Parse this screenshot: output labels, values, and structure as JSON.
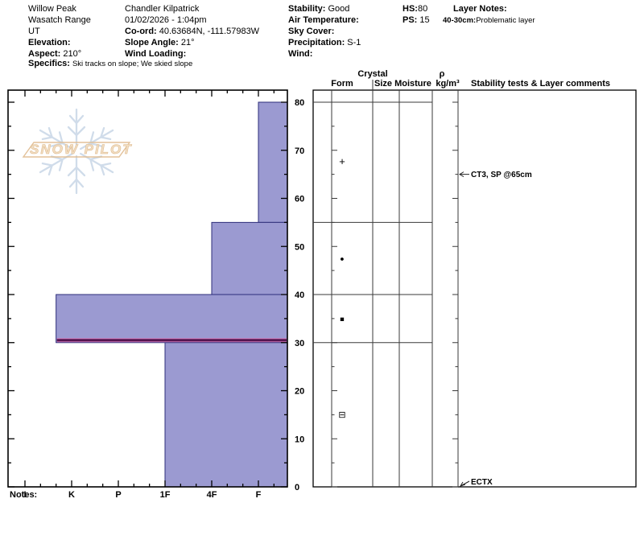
{
  "header": {
    "site": {
      "title": "Willow Peak",
      "range": "Wasatch Range",
      "state": "UT",
      "elevation_label": "Elevation:",
      "elevation_value": "",
      "aspect_label": "Aspect:",
      "aspect_value": "210°"
    },
    "specifics": {
      "label": "Specifics:",
      "value": "Ski tracks on slope; We skied slope"
    },
    "observer": {
      "name": "Chandler Kilpatrick",
      "datetime": "01/02/2026 - 1:04pm",
      "coord_label": "Co-ord:",
      "coord_value": "40.63684N, -111.57983W",
      "slope_label": "Slope Angle:",
      "slope_value": "21°",
      "wind_loading_label": "Wind Loading:",
      "wind_loading_value": ""
    },
    "weather": {
      "stability_label": "Stability:",
      "stability_value": "Good",
      "air_temp_label": "Air Temperature:",
      "air_temp_value": "",
      "sky_label": "Sky Cover:",
      "sky_value": "",
      "precip_label": "Precipitation:",
      "precip_value": "S-1",
      "wind_label": "Wind:",
      "wind_value": ""
    },
    "snow_depths": {
      "hs_label": "HS:",
      "hs_value": "80",
      "ps_label": "PS:",
      "ps_value": "15"
    },
    "layer_notes": {
      "label": "Layer Notes:",
      "entries": [
        {
          "range_label": "40-30cm:",
          "text": "Problematic layer"
        }
      ]
    }
  },
  "watermark": {
    "text": "SNOW PILOT"
  },
  "notes": {
    "label": "Notes:"
  },
  "chart_data": {
    "type": "bar",
    "orientation": "horizontal-snow-profile",
    "depth_axis": {
      "unit": "cm",
      "min": 0,
      "max": 80,
      "major_ticks": [
        0,
        10,
        20,
        30,
        40,
        50,
        60,
        70,
        80
      ],
      "tick_labels": [
        "0",
        "10",
        "20",
        "30",
        "40",
        "50",
        "60",
        "70",
        "80"
      ],
      "minor_step": 5
    },
    "hardness_axis": {
      "categories": [
        "I",
        "K",
        "P",
        "1F",
        "4F",
        "F"
      ]
    },
    "layers": [
      {
        "top_cm": 80,
        "bottom_cm": 55,
        "hardness": "F",
        "symbol": "+",
        "problematic": false
      },
      {
        "top_cm": 55,
        "bottom_cm": 40,
        "hardness": "4F",
        "symbol": "●",
        "problematic": false
      },
      {
        "top_cm": 40,
        "bottom_cm": 30,
        "hardness": "K+",
        "symbol": "■",
        "problematic": true
      },
      {
        "top_cm": 30,
        "bottom_cm": 0,
        "hardness": "1F",
        "symbol": "⊟",
        "problematic": false
      }
    ],
    "columns": {
      "crystal_group": "Crystal",
      "form": "Form",
      "size": "Size",
      "moisture": "Moisture",
      "density_symbol": "ρ",
      "density_unit": "kg/m³",
      "stability": "Stability tests & Layer comments"
    },
    "stability_tests": [
      {
        "text": "CT3, SP @65cm",
        "depth_cm": 65
      },
      {
        "text": "ECTX",
        "depth_cm": 0
      }
    ],
    "colors": {
      "layer_fill": "#9b9ad1",
      "layer_stroke": "#2e2e7a",
      "problem_core": "#571450",
      "problem_edge": "#cf7ab8",
      "grid": "#3a3a3a",
      "axis": "#000000",
      "watermark_flake": "#ccd9e8",
      "watermark_text_fill": "#f2dfc4",
      "watermark_text_stroke": "#dfba8e"
    }
  }
}
